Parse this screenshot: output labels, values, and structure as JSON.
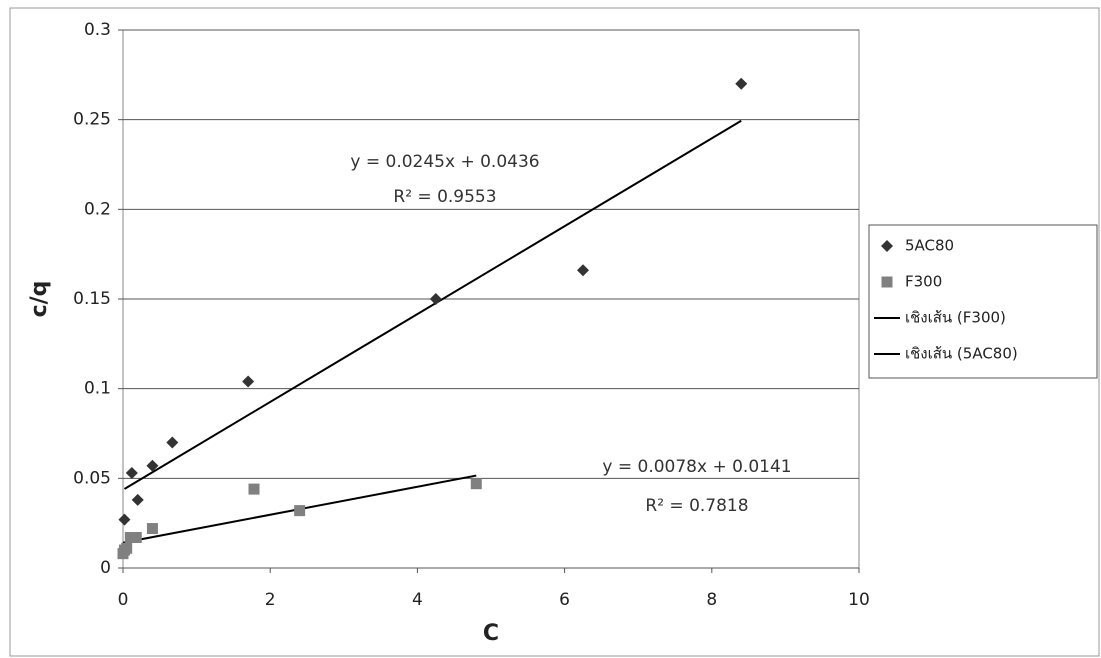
{
  "chart_data": {
    "type": "scatter",
    "x_label": "C",
    "y_label": "c/q",
    "xlim": [
      0,
      10
    ],
    "ylim": [
      0,
      0.3
    ],
    "xticks": [
      0,
      2,
      4,
      6,
      8,
      10
    ],
    "yticks": [
      0,
      0.05,
      0.1,
      0.15,
      0.2,
      0.25,
      0.3
    ],
    "grid": true,
    "series": [
      {
        "name": "5AC80",
        "color": "#333333",
        "marker": "diamond",
        "x": [
          0.02,
          0.12,
          0.2,
          0.4,
          0.67,
          1.7,
          4.25,
          6.25,
          8.4
        ],
        "values": [
          0.027,
          0.053,
          0.038,
          0.057,
          0.07,
          0.104,
          0.15,
          0.166,
          0.27
        ],
        "trendline": {
          "name": "เชิงเส้น (5AC80)",
          "color": "#000000",
          "slope": 0.0245,
          "intercept": 0.0436,
          "equation": "y = 0.0245x + 0.0436",
          "r_squared": "R² = 0.9553"
        }
      },
      {
        "name": "F300",
        "color": "#808080",
        "marker": "square",
        "x": [
          0.0,
          0.02,
          0.05,
          0.1,
          0.18,
          0.4,
          1.78,
          2.4,
          4.8
        ],
        "values": [
          0.008,
          0.01,
          0.011,
          0.017,
          0.017,
          0.022,
          0.044,
          0.032,
          0.047
        ],
        "trendline": {
          "name": "เชิงเส้น (F300)",
          "color": "#000000",
          "slope": 0.0078,
          "intercept": 0.0141,
          "equation": "y = 0.0078x + 0.0141",
          "r_squared": "R² = 0.7818"
        }
      }
    ]
  }
}
